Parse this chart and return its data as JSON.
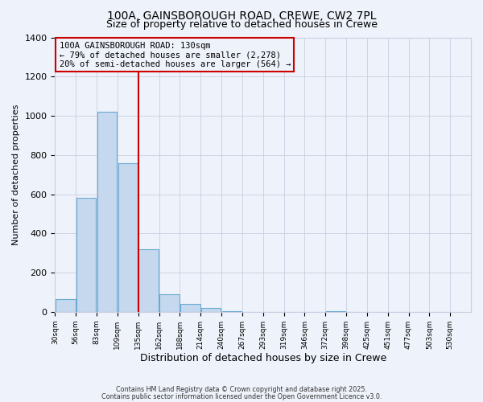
{
  "title1": "100A, GAINSBOROUGH ROAD, CREWE, CW2 7PL",
  "title2": "Size of property relative to detached houses in Crewe",
  "xlabel": "Distribution of detached houses by size in Crewe",
  "ylabel": "Number of detached properties",
  "bar_values": [
    65,
    580,
    1020,
    760,
    320,
    90,
    40,
    18,
    5,
    0,
    0,
    0,
    0,
    2,
    0,
    0,
    0,
    0,
    0
  ],
  "tick_labels": [
    "30sqm",
    "56sqm",
    "83sqm",
    "109sqm",
    "135sqm",
    "162sqm",
    "188sqm",
    "214sqm",
    "240sqm",
    "267sqm",
    "293sqm",
    "319sqm",
    "346sqm",
    "372sqm",
    "398sqm",
    "425sqm",
    "451sqm",
    "477sqm",
    "503sqm",
    "530sqm"
  ],
  "n_bins": 19,
  "vline_position": 4,
  "vline_color": "#cc0000",
  "bar_color": "#c5d8ee",
  "bar_edge_color": "#6aaad4",
  "annotation_line1": "100A GAINSBOROUGH ROAD: 130sqm",
  "annotation_line2": "← 79% of detached houses are smaller (2,278)",
  "annotation_line3": "20% of semi-detached houses are larger (564) →",
  "annotation_box_color": "#cc0000",
  "footnote1": "Contains HM Land Registry data © Crown copyright and database right 2025.",
  "footnote2": "Contains public sector information licensed under the Open Government Licence v3.0.",
  "ylim": [
    0,
    1400
  ],
  "yticks": [
    0,
    200,
    400,
    600,
    800,
    1000,
    1200,
    1400
  ],
  "background_color": "#eef2fa",
  "grid_color": "#c8cfe0"
}
